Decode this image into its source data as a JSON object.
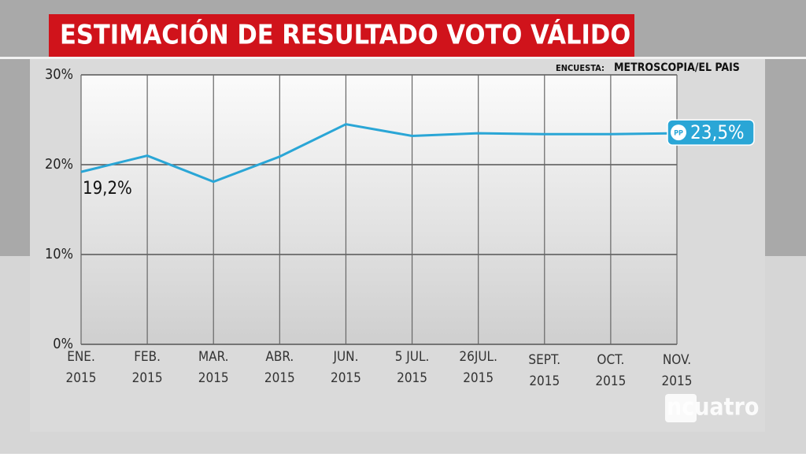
{
  "chart_data": {
    "type": "line",
    "title": "ESTIMACIÓN DE RESULTADO VOTO VÁLIDO",
    "source_label": "ENCUESTA:",
    "source": "METROSCOPIA/EL PAIS",
    "party": "PP",
    "logo": "ncuatro",
    "categories": [
      [
        "ENE.",
        "2015"
      ],
      [
        "FEB.",
        "2015"
      ],
      [
        "MAR.",
        "2015"
      ],
      [
        "ABR.",
        "2015"
      ],
      [
        "JUN.",
        "2015"
      ],
      [
        "5 JUL.",
        "2015"
      ],
      [
        "26JUL.",
        "2015"
      ],
      [
        "SEPT.",
        "2015"
      ],
      [
        "OCT.",
        "2015"
      ],
      [
        "NOV.",
        "2015"
      ]
    ],
    "series": [
      {
        "name": "PP",
        "color": "#2aa6d6",
        "values": [
          19.2,
          21.0,
          18.1,
          20.9,
          24.5,
          23.2,
          23.5,
          23.4,
          23.4,
          23.5
        ],
        "value_labels": [
          "19,2%",
          null,
          null,
          null,
          null,
          null,
          null,
          null,
          null,
          "23,5%"
        ]
      }
    ],
    "ylim": [
      0,
      30
    ],
    "yticks": [
      {
        "value": 0,
        "label": "0%"
      },
      {
        "value": 10,
        "label": "10%"
      },
      {
        "value": 20,
        "label": "20%"
      },
      {
        "value": 30,
        "label": "30%"
      }
    ],
    "grid": true
  }
}
